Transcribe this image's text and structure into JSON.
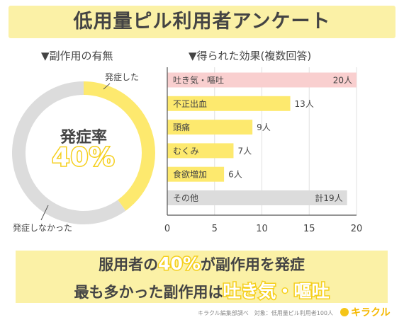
{
  "title": "低用量ピル利用者アンケート",
  "left": {
    "subhead": "▼副作用の有無",
    "label_yes": "発症した",
    "label_no": "発症しなかった",
    "center_label": "発症率",
    "center_value": "40%"
  },
  "right": {
    "subhead": "▼得られた効果(複数回答)"
  },
  "summary": {
    "line1_pre": "服用者の",
    "line1_hl": "40%",
    "line1_post": "が副作用を発症",
    "line2_pre": "最も多かった副作用は",
    "line2_hl": "吐き気・嘔吐"
  },
  "footer": {
    "source": "キラクル編集部調べ　対象：低用量ピル利用者100人",
    "logo": "キラクル"
  },
  "colors": {
    "yellow": "#fde96e",
    "pink": "#f9cfcf",
    "gray": "#dcdcdc",
    "band": "#fbf1a6"
  },
  "chart_data": [
    {
      "type": "pie",
      "slices": [
        {
          "label": "発症した",
          "value": 40,
          "color": "#fde96e"
        },
        {
          "label": "発症しなかった",
          "value": 60,
          "color": "#dcdcdc"
        }
      ]
    },
    {
      "type": "bar",
      "orientation": "horizontal",
      "categories": [
        "吐き気・嘔吐",
        "不正出血",
        "頭痛",
        "むくみ",
        "食欲増加",
        "その他"
      ],
      "values": [
        20,
        13,
        9,
        7,
        6,
        19
      ],
      "value_labels": [
        "20人",
        "13人",
        "9人",
        "7人",
        "6人",
        "計19人"
      ],
      "colors": [
        "#f9cfcf",
        "#fde96e",
        "#fde96e",
        "#fde96e",
        "#fde96e",
        "#dcdcdc"
      ],
      "xlim": [
        0,
        20
      ],
      "xticks": [
        0,
        5,
        10,
        15,
        20
      ]
    }
  ]
}
